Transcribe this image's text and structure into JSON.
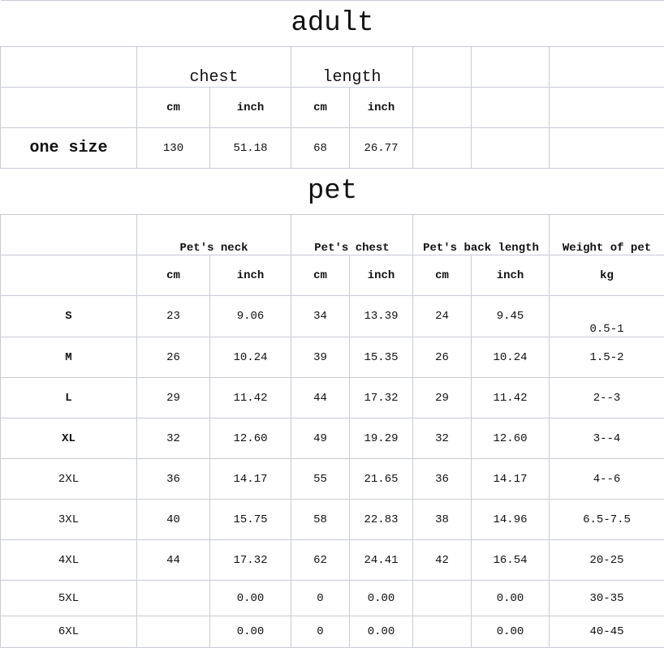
{
  "adult": {
    "title": "adult",
    "groups": [
      "chest",
      "length"
    ],
    "units": [
      "cm",
      "inch",
      "cm",
      "inch"
    ],
    "row": {
      "label": "one size",
      "values": [
        "130",
        "51.18",
        "68",
        "26.77"
      ]
    }
  },
  "pet": {
    "title": "pet",
    "groups": [
      "Pet's neck",
      "Pet's chest",
      "Pet's back length",
      "Weight of pet"
    ],
    "units": [
      "cm",
      "inch",
      "cm",
      "inch",
      "cm",
      "inch",
      "kg"
    ],
    "rows": [
      {
        "size": "S",
        "values": [
          "23",
          "9.06",
          "34",
          "13.39",
          "24",
          "9.45",
          "0.5-1"
        ]
      },
      {
        "size": "M",
        "values": [
          "26",
          "10.24",
          "39",
          "15.35",
          "26",
          "10.24",
          "1.5-2"
        ]
      },
      {
        "size": "L",
        "values": [
          "29",
          "11.42",
          "44",
          "17.32",
          "29",
          "11.42",
          "2--3"
        ]
      },
      {
        "size": "XL",
        "values": [
          "32",
          "12.60",
          "49",
          "19.29",
          "32",
          "12.60",
          "3--4"
        ]
      },
      {
        "size": "2XL",
        "values": [
          "36",
          "14.17",
          "55",
          "21.65",
          "36",
          "14.17",
          "4--6"
        ]
      },
      {
        "size": "3XL",
        "values": [
          "40",
          "15.75",
          "58",
          "22.83",
          "38",
          "14.96",
          "6.5-7.5"
        ]
      },
      {
        "size": "4XL",
        "values": [
          "44",
          "17.32",
          "62",
          "24.41",
          "42",
          "16.54",
          "20-25"
        ]
      },
      {
        "size": "5XL",
        "values": [
          "",
          "0.00",
          "0",
          "0.00",
          "",
          "0.00",
          "30-35"
        ]
      },
      {
        "size": "6XL",
        "values": [
          "",
          "0.00",
          "0",
          "0.00",
          "",
          "0.00",
          "40-45"
        ]
      }
    ]
  }
}
